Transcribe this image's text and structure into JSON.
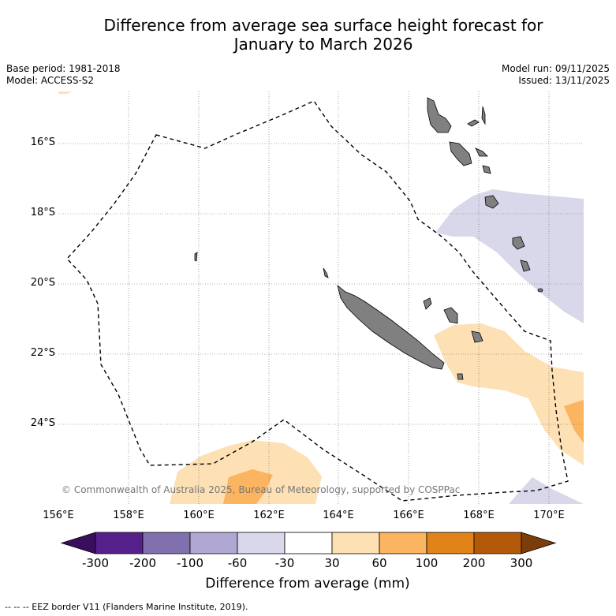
{
  "title_line1": "Difference from average sea surface height forecast for",
  "title_line2": "January to March 2026",
  "base_period": "Base period: 1981-2018",
  "model": "Model: ACCESS-S2",
  "model_run": "Model run: 09/11/2025",
  "issued": "Issued: 13/11/2025",
  "copyright": "© Commonwealth of Australia 2025, Bureau of Meteorology, supported by COSPPac",
  "lat_labels": [
    "16°S",
    "18°S",
    "20°S",
    "22°S",
    "24°S"
  ],
  "lon_labels": [
    "156°E",
    "158°E",
    "160°E",
    "162°E",
    "164°E",
    "166°E",
    "168°E",
    "170°E"
  ],
  "colorbar": {
    "ticks": [
      "-300",
      "-200",
      "-100",
      "-60",
      "-30",
      "30",
      "60",
      "100",
      "200",
      "300"
    ],
    "colors": [
      "#3a0e5c",
      "#55208a",
      "#8070ae",
      "#b0a8d2",
      "#d8d8ea",
      "#ffffff",
      "#fde0b4",
      "#fbb45f",
      "#e08318",
      "#b35a0a",
      "#7b3d0a"
    ],
    "label": "Difference from average (mm)"
  },
  "footer": "--  --  -- EEZ border V11 (Flanders Marine Institute, 2019)."
}
